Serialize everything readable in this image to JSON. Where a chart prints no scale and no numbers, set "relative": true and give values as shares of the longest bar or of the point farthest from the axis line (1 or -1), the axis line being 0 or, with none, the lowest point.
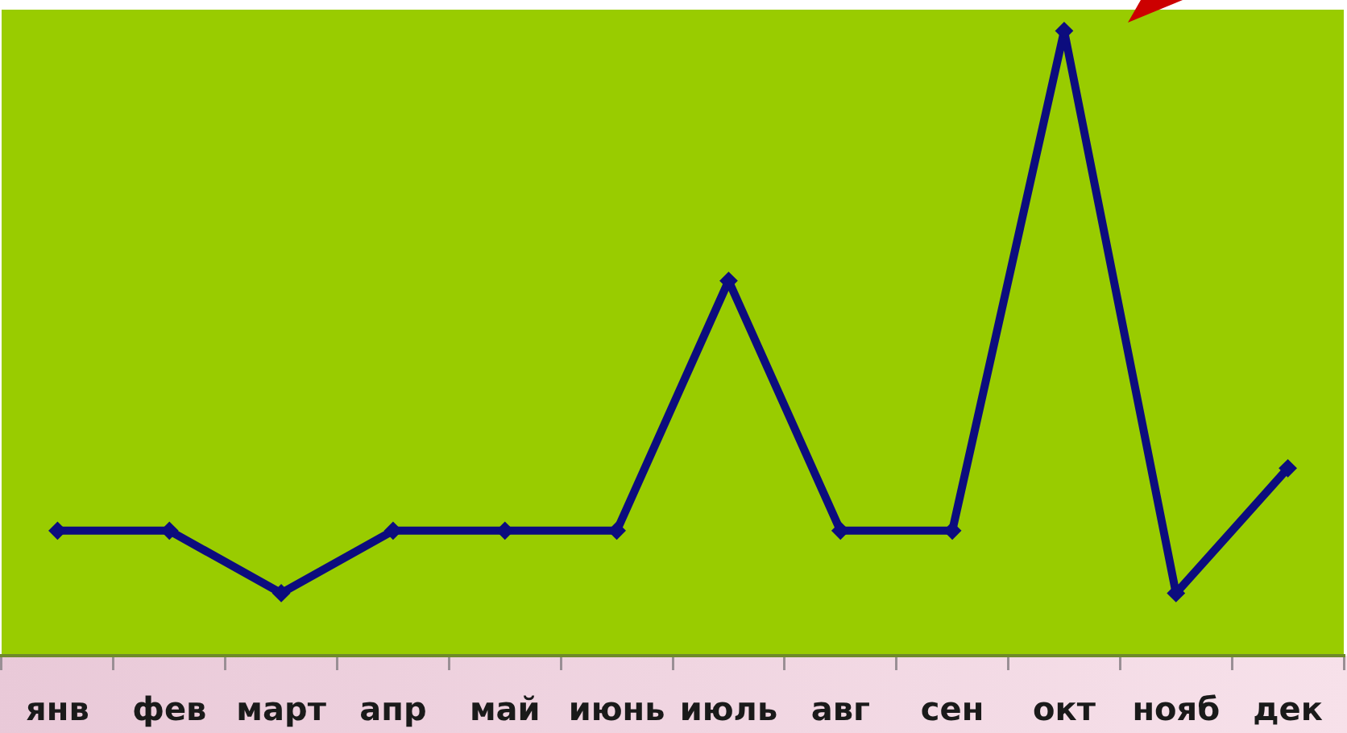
{
  "chart_data": {
    "type": "line",
    "categories": [
      "янв",
      "фев",
      "март",
      "апр",
      "май",
      "июнь",
      "июль",
      "авг",
      "сен",
      "окт",
      "нояб",
      "дек"
    ],
    "values": [
      0.2,
      0.2,
      0.1,
      0.2,
      0.2,
      0.2,
      0.6,
      0.2,
      0.2,
      1,
      0.1,
      0.3
    ],
    "color": "#0c0c7e",
    "relative": true,
    "marker": "diamond"
  }
}
